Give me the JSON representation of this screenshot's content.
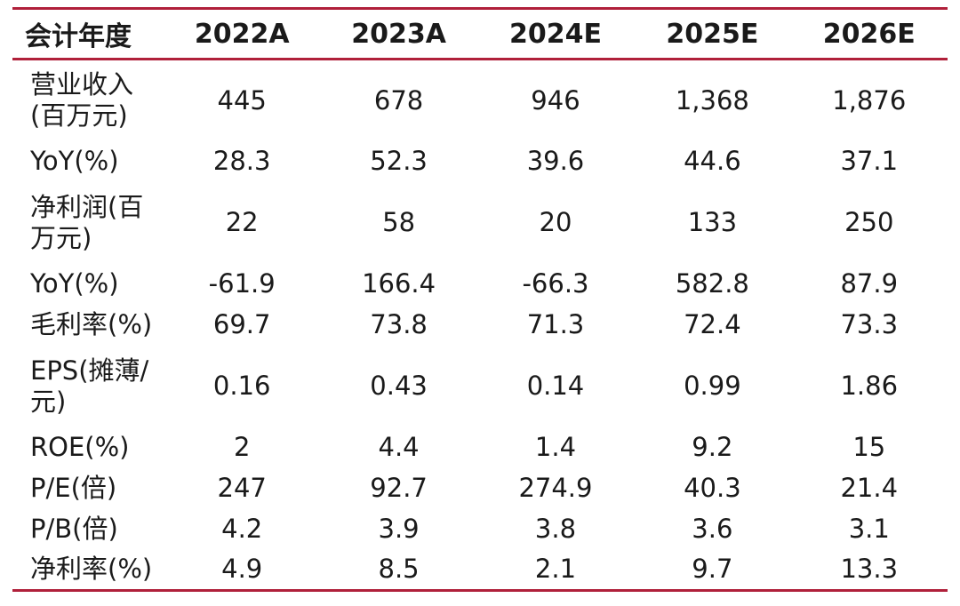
{
  "table": {
    "header": {
      "label": "会计年度",
      "years": [
        "2022A",
        "2023A",
        "2024E",
        "2025E",
        "2026E"
      ]
    },
    "rows": [
      {
        "label": "营业收入(百万元)",
        "values": [
          "445",
          "678",
          "946",
          "1,368",
          "1,876"
        ],
        "tall": true
      },
      {
        "label": "YoY(%)",
        "values": [
          "28.3",
          "52.3",
          "39.6",
          "44.6",
          "37.1"
        ],
        "tall": false
      },
      {
        "label": "净利润(百万元)",
        "values": [
          "22",
          "58",
          "20",
          "133",
          "250"
        ],
        "tall": true
      },
      {
        "label": "YoY(%)",
        "values": [
          "-61.9",
          "166.4",
          "-66.3",
          "582.8",
          "87.9"
        ],
        "tall": false
      },
      {
        "label": "毛利率(%)",
        "values": [
          "69.7",
          "73.8",
          "71.3",
          "72.4",
          "73.3"
        ],
        "tall": false
      },
      {
        "label": "EPS(摊薄/元)",
        "values": [
          "0.16",
          "0.43",
          "0.14",
          "0.99",
          "1.86"
        ],
        "tall": true
      },
      {
        "label": "ROE(%)",
        "values": [
          "2",
          "4.4",
          "1.4",
          "9.2",
          "15"
        ],
        "tall": false
      },
      {
        "label": "P/E(倍)",
        "values": [
          "247",
          "92.7",
          "274.9",
          "40.3",
          "21.4"
        ],
        "tall": false
      },
      {
        "label": "P/B(倍)",
        "values": [
          "4.2",
          "3.9",
          "3.8",
          "3.6",
          "3.1"
        ],
        "tall": false
      },
      {
        "label": "净利率(%)",
        "values": [
          "4.9",
          "8.5",
          "2.1",
          "9.7",
          "13.3"
        ],
        "tall": false
      }
    ]
  }
}
